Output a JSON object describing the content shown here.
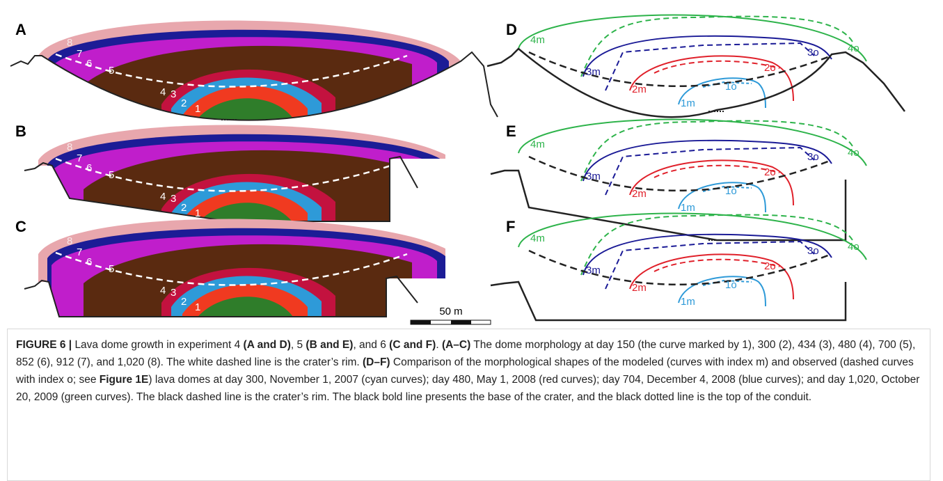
{
  "panels": [
    {
      "letter": "A",
      "labels": [
        "8",
        "7",
        "6",
        "5",
        "4",
        "3",
        "2",
        "1"
      ]
    },
    {
      "letter": "B",
      "labels": [
        "8",
        "7",
        "6",
        "5",
        "4",
        "3",
        "2",
        "1"
      ]
    },
    {
      "letter": "C",
      "labels": [
        "8",
        "7",
        "6",
        "5",
        "4",
        "3",
        "2",
        "1"
      ]
    },
    {
      "letter": "D",
      "labels": [
        "4m",
        "3m",
        "2m",
        "1m",
        "4o",
        "3o",
        "2o",
        "1o"
      ]
    },
    {
      "letter": "E",
      "labels": [
        "4m",
        "3m",
        "2m",
        "1m",
        "4o",
        "3o",
        "2o",
        "1o"
      ]
    },
    {
      "letter": "F",
      "labels": [
        "4m",
        "3m",
        "2m",
        "1m",
        "4o",
        "3o",
        "2o",
        "1o"
      ]
    }
  ],
  "scale_bar": "50 m",
  "caption": [
    {
      "text": "FIGURE 6 | ",
      "bold": true
    },
    {
      "text": "Lava dome growth in experiment 4 ",
      "bold": false
    },
    {
      "text": "(A and D)",
      "bold": true
    },
    {
      "text": ", 5 ",
      "bold": false
    },
    {
      "text": "(B and E)",
      "bold": true
    },
    {
      "text": ", and 6 ",
      "bold": false
    },
    {
      "text": "(C and F)",
      "bold": true
    },
    {
      "text": ". ",
      "bold": false
    },
    {
      "text": "(A–C)",
      "bold": true
    },
    {
      "text": " The dome morphology at day 150 (the curve marked by 1), 300 (2), 434 (3), 480 (4), 700 (5), 852 (6), 912 (7), and 1,020 (8). The white dashed line is the crater’s rim. ",
      "bold": false
    },
    {
      "text": "(D–F)",
      "bold": true
    },
    {
      "text": " Comparison of the morphological shapes of the modeled (curves with index m) and observed (dashed curves with index o; see ",
      "bold": false
    },
    {
      "text": "Figure 1E",
      "bold": true
    },
    {
      "text": ") lava domes at day 300, November 1, 2007 (cyan curves); day 480, May 1, 2008 (red curves); day 704, December 4, 2008 (blue curves); and day 1,020, October 20, 2009 (green curves). The black dashed line is the crater’s rim. The black bold line presents the base of the crater, and the black dotted line is the top of the conduit.",
      "bold": false
    }
  ]
}
